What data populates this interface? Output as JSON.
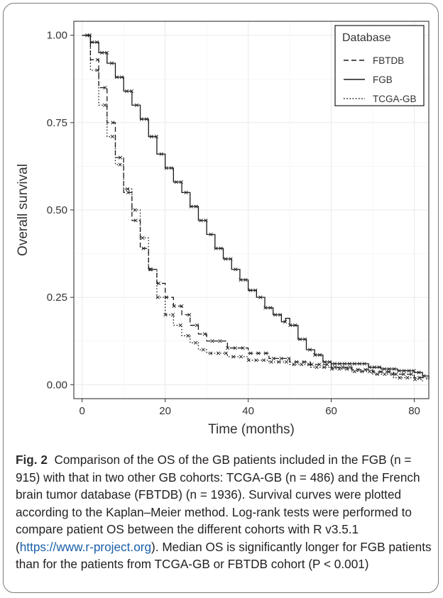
{
  "chart_data": {
    "type": "line",
    "subtype": "kaplan-meier",
    "xlabel": "Time (months)",
    "ylabel": "Overall survival",
    "xlim": [
      -2,
      83.5
    ],
    "ylim": [
      -0.04,
      1.04
    ],
    "xticks": [
      0,
      20,
      40,
      60,
      80
    ],
    "yticks": [
      0.0,
      0.25,
      0.5,
      0.75,
      1.0
    ],
    "xtick_labels": [
      "0",
      "20",
      "40",
      "60",
      "80"
    ],
    "ytick_labels": [
      "0.00",
      "0.25",
      "0.50",
      "0.75",
      "1.00"
    ],
    "grid": true,
    "legend": {
      "title": "Database",
      "position": "top-right"
    },
    "series": [
      {
        "name": "FBTDB",
        "style": "dashed",
        "x": [
          0,
          2,
          4,
          6,
          8,
          10,
          12,
          14,
          16,
          18,
          20,
          22,
          24,
          26,
          28,
          30,
          35,
          40,
          45,
          50,
          55,
          60,
          65,
          70,
          75,
          80,
          83
        ],
        "y": [
          1.0,
          0.93,
          0.85,
          0.75,
          0.65,
          0.55,
          0.47,
          0.39,
          0.33,
          0.29,
          0.25,
          0.225,
          0.2,
          0.17,
          0.145,
          0.125,
          0.105,
          0.09,
          0.075,
          0.065,
          0.058,
          0.05,
          0.043,
          0.037,
          0.03,
          0.02,
          0.015
        ]
      },
      {
        "name": "FGB",
        "style": "solid",
        "x": [
          0,
          2,
          4,
          6,
          8,
          10,
          12,
          14,
          16,
          18,
          20,
          22,
          24,
          26,
          28,
          30,
          32,
          34,
          36,
          38,
          40,
          42,
          44,
          46,
          48,
          49,
          50,
          52,
          54,
          56,
          58,
          60,
          64,
          69,
          72,
          76,
          80,
          82,
          83.5
        ],
        "y": [
          1.0,
          0.98,
          0.95,
          0.92,
          0.88,
          0.84,
          0.8,
          0.76,
          0.71,
          0.66,
          0.62,
          0.58,
          0.55,
          0.51,
          0.47,
          0.43,
          0.39,
          0.36,
          0.33,
          0.3,
          0.27,
          0.25,
          0.22,
          0.2,
          0.18,
          0.19,
          0.17,
          0.13,
          0.1,
          0.085,
          0.065,
          0.06,
          0.06,
          0.05,
          0.045,
          0.04,
          0.035,
          0.025,
          0.015
        ]
      },
      {
        "name": "TCGA-GB",
        "style": "dotted",
        "x": [
          0,
          2,
          4,
          6,
          8,
          10,
          12,
          14,
          16,
          18,
          20,
          22,
          24,
          26,
          28,
          30,
          35,
          40,
          45,
          50,
          55,
          60,
          65,
          70,
          75,
          80,
          82
        ],
        "y": [
          1.0,
          0.9,
          0.8,
          0.71,
          0.63,
          0.56,
          0.5,
          0.42,
          0.33,
          0.25,
          0.2,
          0.17,
          0.14,
          0.12,
          0.1,
          0.09,
          0.08,
          0.07,
          0.065,
          0.058,
          0.05,
          0.045,
          0.038,
          0.03,
          0.02,
          0.015,
          0.01
        ]
      }
    ]
  },
  "caption": {
    "fig_label": "Fig. 2",
    "text": "Comparison of the OS of the GB patients included in the FGB (n = 915) with that in two other GB cohorts: TCGA-GB (n = 486) and the French brain tumor database (FBTDB) (n = 1936). Survival curves were plotted according to the Kaplan–Meier method. Log-rank tests were performed to compare patient OS between the different cohorts with R v3.5.1 (",
    "link": "https://www.r-project.org",
    "text_end": "). Median OS is significantly longer for FGB patients than for the patients from TCGA-GB or FBTDB cohort (P < 0.001)"
  }
}
